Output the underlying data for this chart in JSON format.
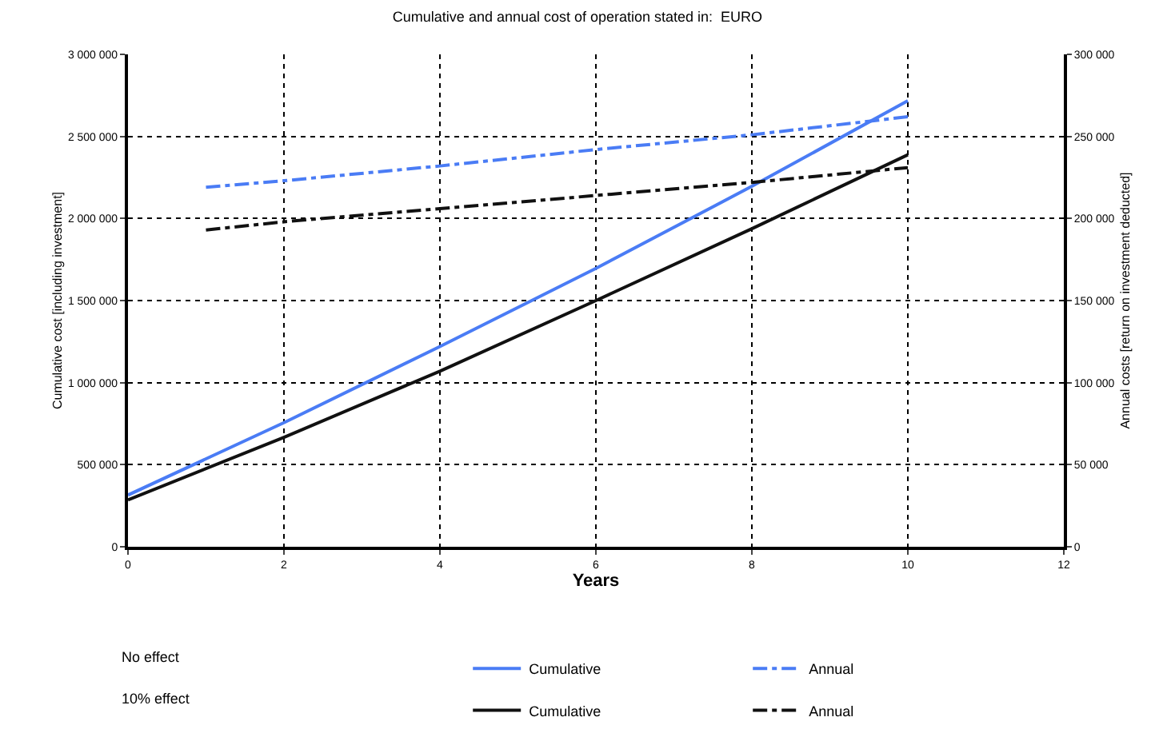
{
  "chart_data": {
    "type": "line",
    "title": "Cumulative and annual cost of operation stated in:  EURO",
    "xlabel": "Years",
    "ylabel": "Cumulative cost [including investment]",
    "y2label": "Annual costs [return on investment deducted]",
    "annotations": [
      "No effect",
      "10% effect"
    ],
    "series": [
      {
        "name": "Cumulative",
        "color": "#4a7cf5",
        "x": [
          0,
          2,
          4,
          6,
          8,
          10
        ],
        "values": [
          315000,
          756000,
          1220000,
          1696000,
          2196000,
          2717000
        ],
        "line_style": "solid"
      },
      {
        "name": "Annual",
        "color": "#4a7cf5",
        "axis": "y2",
        "x": [
          1,
          2,
          4,
          6,
          8,
          10
        ],
        "values": [
          219000,
          223000,
          232000,
          242000,
          251000,
          262000
        ],
        "line_style": "dashed"
      },
      {
        "name": "Cumulative",
        "color": "#111111",
        "x": [
          0,
          2,
          4,
          6,
          8,
          10
        ],
        "values": [
          285000,
          667000,
          1070000,
          1500000,
          1938000,
          2388000
        ],
        "line_style": "solid"
      },
      {
        "name": "Annual",
        "color": "#111111",
        "axis": "y2",
        "x": [
          1,
          2,
          4,
          6,
          8,
          10
        ],
        "values": [
          193000,
          198000,
          206000,
          214000,
          222000,
          231000
        ],
        "line_style": "dashed"
      }
    ],
    "xlim": [
      0,
      12
    ],
    "xticks": [
      0,
      2,
      4,
      6,
      8,
      10,
      12
    ],
    "ylim": [
      0,
      3000000
    ],
    "yticks": [
      0,
      {
        "value": 500000,
        "label": "500 000"
      },
      {
        "value": 1000000,
        "label": "1 000 000"
      },
      {
        "value": 1500000,
        "label": "1 500 000"
      },
      {
        "value": 2000000,
        "label": "2 000 000"
      },
      {
        "value": 2500000,
        "label": "2 500 000"
      },
      {
        "value": 3000000,
        "label": "3 000 000"
      }
    ],
    "y2lim": [
      0,
      300000
    ],
    "y2ticks": [
      0,
      {
        "value": 50000,
        "label": "50 000"
      },
      {
        "value": 100000,
        "label": "100 000"
      },
      {
        "value": 150000,
        "label": "150 000"
      },
      {
        "value": 200000,
        "label": "200 000"
      },
      {
        "value": 250000,
        "label": "250 000"
      },
      {
        "value": 300000,
        "label": "300 000"
      }
    ],
    "grid": true,
    "legend": "bottom",
    "marker": "none"
  }
}
